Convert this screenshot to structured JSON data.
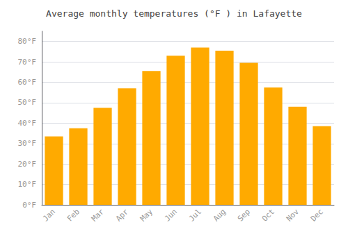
{
  "chart_data": {
    "type": "bar",
    "title": "Average monthly temperatures (°F ) in Lafayette",
    "categories": [
      "Jan",
      "Feb",
      "Mar",
      "Apr",
      "May",
      "Jun",
      "Jul",
      "Aug",
      "Sep",
      "Oct",
      "Nov",
      "Dec"
    ],
    "values": [
      33.5,
      37.5,
      47.5,
      57,
      65.5,
      73,
      77,
      75.5,
      69.5,
      57.5,
      48,
      38.5
    ],
    "color": "#FFAA00",
    "ylim": [
      0,
      85
    ],
    "yticks": [
      {
        "value": 0,
        "label": "0°F"
      },
      {
        "value": 10,
        "label": "10°F"
      },
      {
        "value": 20,
        "label": "20°F"
      },
      {
        "value": 30,
        "label": "30°F"
      },
      {
        "value": 40,
        "label": "40°F"
      },
      {
        "value": 50,
        "label": "50°F"
      },
      {
        "value": 60,
        "label": "60°F"
      },
      {
        "value": 70,
        "label": "70°F"
      },
      {
        "value": 80,
        "label": "80°F"
      }
    ],
    "grid": true
  }
}
